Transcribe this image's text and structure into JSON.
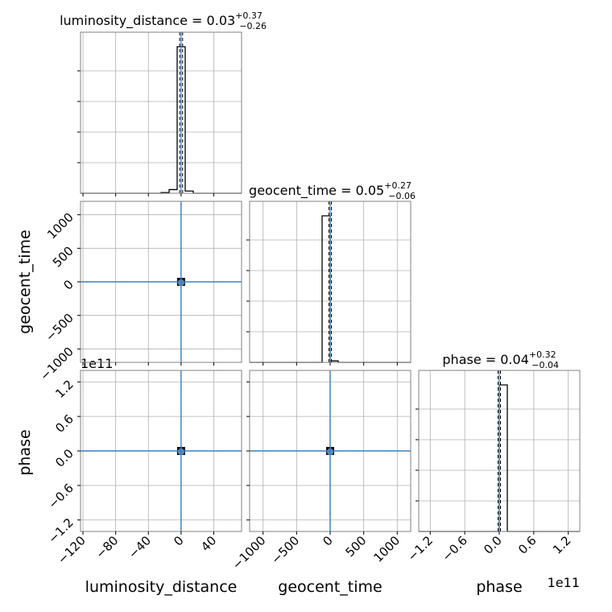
{
  "chart_data": {
    "type": "corner",
    "parameters": [
      "luminosity_distance",
      "geocent_time",
      "phase"
    ],
    "titles": {
      "luminosity_distance": {
        "label": "luminosity_distance",
        "median": "0.03",
        "plus": "+0.37",
        "minus": "−0.26"
      },
      "geocent_time": {
        "label": "geocent_time",
        "median": "0.05",
        "plus": "+0.27",
        "minus": "−0.06"
      },
      "phase": {
        "label": "phase",
        "median": "0.04",
        "plus": "+0.32",
        "minus": "−0.04"
      }
    },
    "axis_labels": {
      "x": [
        "luminosity_distance",
        "geocent_time",
        "phase"
      ],
      "y": [
        "geocent_time",
        "phase"
      ]
    },
    "ranges": {
      "luminosity_distance": [
        -123,
        74
      ],
      "geocent_time": [
        -1200,
        1200
      ],
      "phase": [
        -140000000000.0,
        140000000000.0
      ]
    },
    "ticks": {
      "luminosity_distance": {
        "values": [
          -120,
          -80,
          -40,
          0,
          40
        ],
        "labels": [
          "−120",
          "−80",
          "−40",
          "0",
          "40"
        ]
      },
      "geocent_time": {
        "values": [
          -1000,
          -500,
          0,
          500,
          1000
        ],
        "labels": [
          "−1000",
          "−500",
          "0",
          "500",
          "1000"
        ]
      },
      "phase": {
        "values": [
          -120000000000.0,
          -60000000000.0,
          0,
          60000000000.0,
          120000000000.0
        ],
        "labels": [
          "−1.2",
          "−0.6",
          "0.0",
          "0.6",
          "1.2"
        ],
        "offset_label": "1e11"
      }
    },
    "truth": {
      "luminosity_distance": 0,
      "geocent_time": 0,
      "phase": 0
    },
    "quantile_lines": {
      "luminosity_distance": [
        -0.23,
        0.03,
        0.4
      ],
      "geocent_time": [
        -0.01,
        0.05,
        0.32
      ],
      "phase": [
        0,
        0.04,
        0.36
      ]
    },
    "histograms": {
      "luminosity_distance": {
        "bin_edges": [
          -123,
          -113.15,
          -103.3,
          -93.45,
          -83.6,
          -73.75,
          -63.9,
          -54.05,
          -44.2,
          -34.35,
          -24.5,
          -14.65,
          -4.8,
          5.05,
          14.9,
          24.75,
          34.6,
          44.45,
          54.3,
          64.15,
          74
        ],
        "counts": [
          0,
          0,
          0,
          0,
          0,
          0,
          0,
          0,
          0,
          0,
          0.005,
          0.025,
          1.0,
          0.015,
          0,
          0,
          0,
          0,
          0,
          0
        ]
      },
      "geocent_time": {
        "bin_edges": [
          -1200,
          -1080,
          -960,
          -840,
          -720,
          -600,
          -480,
          -360,
          -240,
          -120,
          0,
          120,
          240,
          360,
          480,
          600,
          720,
          840,
          960,
          1080,
          1200
        ],
        "counts": [
          0,
          0,
          0,
          0,
          0,
          0,
          0,
          0,
          0,
          1.0,
          0.01,
          0,
          0,
          0,
          0,
          0,
          0,
          0,
          0,
          0
        ]
      },
      "phase": {
        "bin_edges": [
          -140000000000.0,
          -126000000000.0,
          -112000000000.0,
          -98000000000.0,
          -84000000000.0,
          -70000000000.0,
          -56000000000.0,
          -42000000000.0,
          -28000000000.0,
          -14000000000.0,
          0,
          14000000000.0,
          28000000000.0,
          42000000000.0,
          56000000000.0,
          70000000000.0,
          84000000000.0,
          98000000000.0,
          112000000000.0,
          126000000000.0,
          140000000000.0
        ],
        "counts": [
          0,
          0,
          0,
          0,
          0,
          0,
          0,
          0,
          0,
          0,
          1.0,
          0,
          0,
          0,
          0,
          0,
          0,
          0,
          0,
          0
        ]
      }
    },
    "scatter_center": {
      "luminosity_distance": 0,
      "geocent_time": 0,
      "phase": 0
    },
    "grid": true,
    "colors": {
      "hist": "#000000",
      "truth": "#3b82c4",
      "density": "#5b8fc0",
      "grid": "#b0b0b0",
      "spine": "#808080"
    }
  }
}
